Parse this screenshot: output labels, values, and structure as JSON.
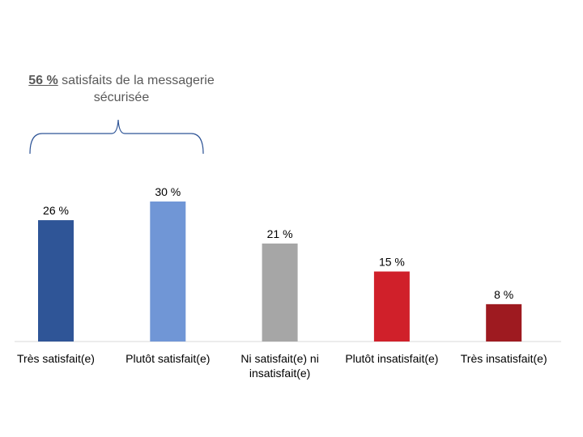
{
  "chart_data": {
    "type": "bar",
    "categories": [
      "Très satisfait(e)",
      "Plutôt satisfait(e)",
      "Ni satisfait(e) ni insatisfait(e)",
      "Plutôt insatisfait(e)",
      "Très insatisfait(e)"
    ],
    "values": [
      26,
      30,
      21,
      15,
      8
    ],
    "data_labels": [
      "26 %",
      "30 %",
      "21 %",
      "15 %",
      "8 %"
    ],
    "colors": [
      "#2F5597",
      "#7096D6",
      "#A6A6A6",
      "#D0202A",
      "#9E1A20"
    ],
    "ylim": [
      0,
      30
    ],
    "grid": false,
    "annotation": {
      "highlight": "56 %",
      "text": " satisfaits de la messagerie sécurisée",
      "covers": [
        "Très satisfait(e)",
        "Plutôt satisfait(e)"
      ]
    }
  }
}
